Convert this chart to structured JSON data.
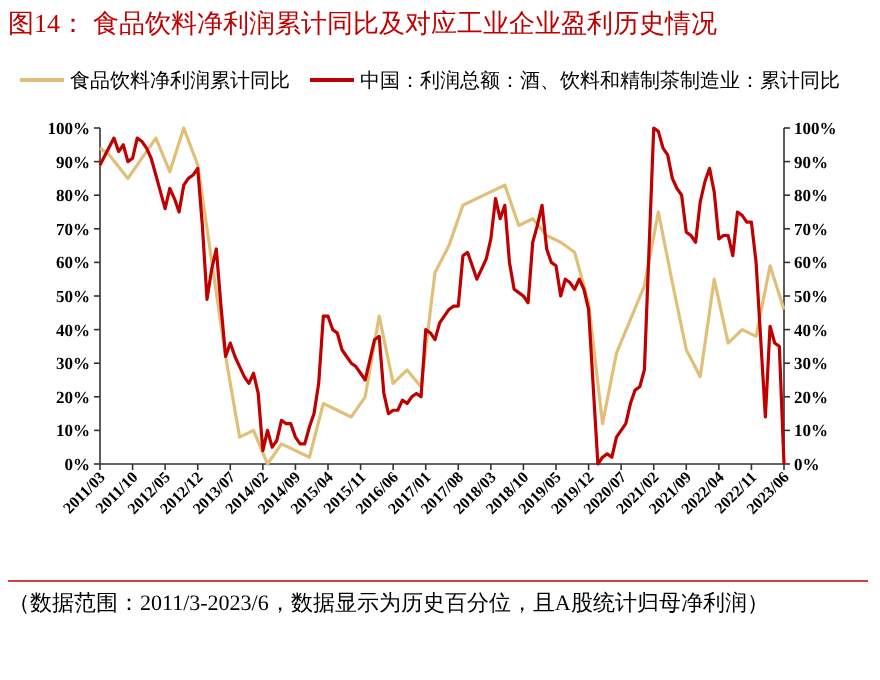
{
  "chart_data": {
    "type": "line",
    "title": "图14：  食品饮料净利润累计同比及对应工业企业盈利历史情况",
    "annotations": [
      "（数据范围：2011/3-2023/6，数据显示为历史百分位，且A股统计归母净利润）"
    ],
    "legend": "top",
    "grid": false,
    "xlim": [
      "2011-03",
      "2023-06"
    ],
    "xticks": [
      {
        "value": "2011-03",
        "label": "2011/03"
      },
      {
        "value": "2011-10",
        "label": "2011/10"
      },
      {
        "value": "2012-05",
        "label": "2012/05"
      },
      {
        "value": "2012-12",
        "label": "2012/12"
      },
      {
        "value": "2013-07",
        "label": "2013/07"
      },
      {
        "value": "2014-02",
        "label": "2014/02"
      },
      {
        "value": "2014-09",
        "label": "2014/09"
      },
      {
        "value": "2015-04",
        "label": "2015/04"
      },
      {
        "value": "2015-11",
        "label": "2015/11"
      },
      {
        "value": "2016-06",
        "label": "2016/06"
      },
      {
        "value": "2017-01",
        "label": "2017/01"
      },
      {
        "value": "2017-08",
        "label": "2017/08"
      },
      {
        "value": "2018-03",
        "label": "2018/03"
      },
      {
        "value": "2018-10",
        "label": "2018/10"
      },
      {
        "value": "2019-05",
        "label": "2019/05"
      },
      {
        "value": "2019-12",
        "label": "2019/12"
      },
      {
        "value": "2020-07",
        "label": "2020/07"
      },
      {
        "value": "2021-02",
        "label": "2021/02"
      },
      {
        "value": "2021-09",
        "label": "2021/09"
      },
      {
        "value": "2022-04",
        "label": "2022/04"
      },
      {
        "value": "2022-11",
        "label": "2022/11"
      },
      {
        "value": "2023-06",
        "label": "2023/06"
      }
    ],
    "ylim": [
      0,
      100
    ],
    "yticks": [
      {
        "value": 0,
        "label": "0%"
      },
      {
        "value": 10,
        "label": "10%"
      },
      {
        "value": 20,
        "label": "20%"
      },
      {
        "value": 30,
        "label": "30%"
      },
      {
        "value": 40,
        "label": "40%"
      },
      {
        "value": 50,
        "label": "50%"
      },
      {
        "value": 60,
        "label": "60%"
      },
      {
        "value": 70,
        "label": "70%"
      },
      {
        "value": 80,
        "label": "80%"
      },
      {
        "value": 90,
        "label": "90%"
      },
      {
        "value": 100,
        "label": "100%"
      }
    ],
    "y2lim": [
      0,
      100
    ],
    "y2ticks": [
      {
        "value": 0,
        "label": "0%"
      },
      {
        "value": 10,
        "label": "10%"
      },
      {
        "value": 20,
        "label": "20%"
      },
      {
        "value": 30,
        "label": "30%"
      },
      {
        "value": 40,
        "label": "40%"
      },
      {
        "value": 50,
        "label": "50%"
      },
      {
        "value": 60,
        "label": "60%"
      },
      {
        "value": 70,
        "label": "70%"
      },
      {
        "value": 80,
        "label": "80%"
      },
      {
        "value": 90,
        "label": "90%"
      },
      {
        "value": 100,
        "label": "100%"
      }
    ],
    "series": [
      {
        "name": "食品饮料净利润累计同比",
        "color": "#e0c078",
        "x": [
          "2011-03",
          "2011-05",
          "2011-09",
          "2012-03",
          "2012-06",
          "2012-09",
          "2012-12",
          "2013-06",
          "2013-09",
          "2013-12",
          "2014-03",
          "2014-06",
          "2014-12",
          "2015-03",
          "2015-09",
          "2015-12",
          "2016-03",
          "2016-06",
          "2016-09",
          "2016-12",
          "2017-03",
          "2017-06",
          "2017-09",
          "2018-06",
          "2018-09",
          "2018-12",
          "2019-03",
          "2019-06",
          "2019-09",
          "2019-12",
          "2020-03",
          "2020-06",
          "2020-12",
          "2021-03",
          "2021-06",
          "2021-09",
          "2021-12",
          "2022-03",
          "2022-06",
          "2022-09",
          "2022-12",
          "2023-03",
          "2023-06"
        ],
        "values": [
          94,
          92,
          85,
          97,
          87,
          100,
          89,
          32,
          8,
          10,
          0,
          6,
          2,
          18,
          14,
          20,
          44,
          24,
          28,
          23,
          57,
          65,
          77,
          83,
          71,
          73,
          68,
          66,
          63,
          48,
          12,
          33,
          53,
          75,
          54,
          34,
          26,
          55,
          36,
          40,
          38,
          59,
          46
        ]
      },
      {
        "name": "中国：利润总额：酒、饮料和精制茶制造业：累计同比",
        "color": "#c00000",
        "x": [
          "2011-03",
          "2011-06",
          "2011-07",
          "2011-08",
          "2011-09",
          "2011-10",
          "2011-11",
          "2011-12",
          "2012-01",
          "2012-02",
          "2012-03",
          "2012-04",
          "2012-05",
          "2012-06",
          "2012-07",
          "2012-08",
          "2012-09",
          "2012-10",
          "2012-11",
          "2012-12",
          "2013-01",
          "2013-02",
          "2013-03",
          "2013-04",
          "2013-05",
          "2013-06",
          "2013-07",
          "2013-08",
          "2013-09",
          "2013-10",
          "2013-11",
          "2013-12",
          "2014-01",
          "2014-02",
          "2014-03",
          "2014-04",
          "2014-05",
          "2014-06",
          "2014-07",
          "2014-08",
          "2014-09",
          "2014-10",
          "2014-11",
          "2014-12",
          "2015-01",
          "2015-02",
          "2015-03",
          "2015-04",
          "2015-05",
          "2015-06",
          "2015-07",
          "2015-08",
          "2015-09",
          "2015-10",
          "2015-11",
          "2015-12",
          "2016-01",
          "2016-02",
          "2016-03",
          "2016-04",
          "2016-05",
          "2016-06",
          "2016-07",
          "2016-08",
          "2016-09",
          "2016-10",
          "2016-11",
          "2016-12",
          "2017-01",
          "2017-02",
          "2017-03",
          "2017-04",
          "2017-05",
          "2017-06",
          "2017-07",
          "2017-08",
          "2017-09",
          "2017-10",
          "2017-11",
          "2017-12",
          "2018-01",
          "2018-02",
          "2018-03",
          "2018-04",
          "2018-05",
          "2018-06",
          "2018-07",
          "2018-08",
          "2018-09",
          "2018-10",
          "2018-11",
          "2018-12",
          "2019-01",
          "2019-02",
          "2019-03",
          "2019-04",
          "2019-05",
          "2019-06",
          "2019-07",
          "2019-08",
          "2019-09",
          "2019-10",
          "2019-11",
          "2019-12",
          "2020-02",
          "2020-03",
          "2020-04",
          "2020-05",
          "2020-06",
          "2020-07",
          "2020-08",
          "2020-09",
          "2020-10",
          "2020-11",
          "2020-12",
          "2021-02",
          "2021-03",
          "2021-04",
          "2021-05",
          "2021-06",
          "2021-07",
          "2021-08",
          "2021-09",
          "2021-10",
          "2021-11",
          "2021-12",
          "2022-01",
          "2022-02",
          "2022-03",
          "2022-04",
          "2022-05",
          "2022-06",
          "2022-07",
          "2022-08",
          "2022-09",
          "2022-10",
          "2022-11",
          "2022-12",
          "2023-02",
          "2023-03",
          "2023-04",
          "2023-05",
          "2023-06"
        ],
        "values": [
          89,
          97,
          93,
          95,
          90,
          91,
          97,
          96,
          94,
          91,
          86,
          81,
          76,
          82,
          79,
          75,
          83,
          85,
          86,
          88,
          71,
          49,
          58,
          64,
          47,
          32,
          36,
          32,
          29,
          26,
          24,
          27,
          21,
          4,
          10,
          5,
          7,
          13,
          12,
          12,
          8,
          6,
          6,
          11,
          15,
          24,
          44,
          44,
          40,
          39,
          34,
          32,
          30,
          29,
          27,
          25,
          31,
          37,
          38,
          21,
          15,
          16,
          16,
          19,
          18,
          20,
          21,
          20,
          40,
          39,
          37,
          42,
          44,
          46,
          47,
          47,
          62,
          63,
          59,
          55,
          58,
          61,
          67,
          79,
          73,
          77,
          60,
          52,
          51,
          50,
          48,
          66,
          71,
          77,
          64,
          60,
          59,
          50,
          55,
          54,
          52,
          55,
          52,
          46,
          0,
          2,
          3,
          2,
          8,
          10,
          12,
          18,
          22,
          23,
          28,
          100,
          99,
          94,
          92,
          85,
          82,
          80,
          69,
          68,
          66,
          78,
          84,
          88,
          81,
          67,
          68,
          68,
          62,
          75,
          74,
          72,
          72,
          60,
          14,
          41,
          36,
          35,
          0
        ]
      }
    ]
  }
}
